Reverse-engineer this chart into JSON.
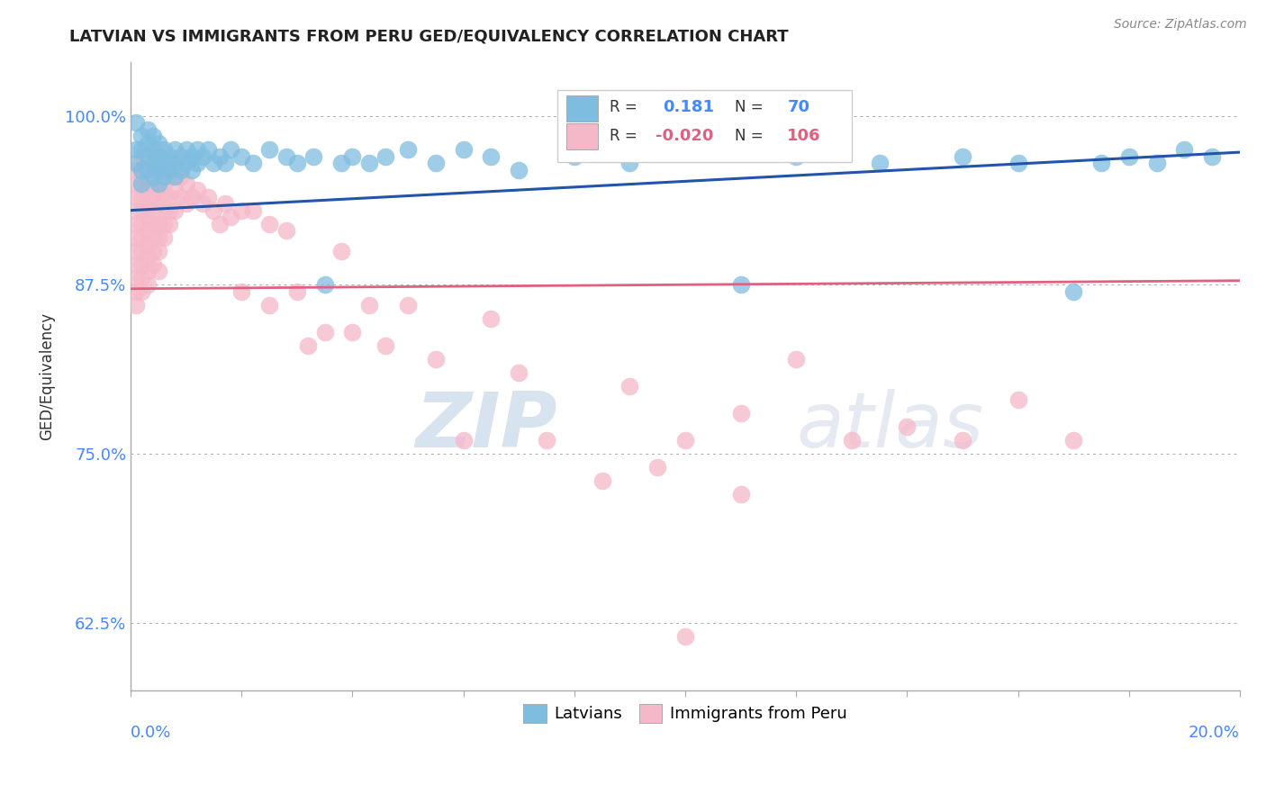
{
  "title": "LATVIAN VS IMMIGRANTS FROM PERU GED/EQUIVALENCY CORRELATION CHART",
  "source": "Source: ZipAtlas.com",
  "ylabel": "GED/Equivalency",
  "ytick_labels": [
    "62.5%",
    "75.0%",
    "87.5%",
    "100.0%"
  ],
  "ytick_values": [
    0.625,
    0.75,
    0.875,
    1.0
  ],
  "xlim": [
    0.0,
    0.2
  ],
  "ylim": [
    0.575,
    1.04
  ],
  "legend_latvians": "Latvians",
  "legend_peru": "Immigrants from Peru",
  "r_latvian": 0.181,
  "n_latvian": 70,
  "r_peru": -0.02,
  "n_peru": 106,
  "blue_color": "#7fbde0",
  "pink_color": "#f5b8c8",
  "blue_line_color": "#2255aa",
  "pink_line_color": "#e06080",
  "lv_line_y0": 0.93,
  "lv_line_y1": 0.973,
  "peru_line_y0": 0.872,
  "peru_line_y1": 0.878,
  "latvian_scatter": [
    [
      0.001,
      0.975
    ],
    [
      0.001,
      0.965
    ],
    [
      0.001,
      0.995
    ],
    [
      0.002,
      0.985
    ],
    [
      0.002,
      0.975
    ],
    [
      0.002,
      0.96
    ],
    [
      0.002,
      0.95
    ],
    [
      0.003,
      0.99
    ],
    [
      0.003,
      0.98
    ],
    [
      0.003,
      0.97
    ],
    [
      0.003,
      0.96
    ],
    [
      0.004,
      0.985
    ],
    [
      0.004,
      0.975
    ],
    [
      0.004,
      0.965
    ],
    [
      0.004,
      0.955
    ],
    [
      0.005,
      0.98
    ],
    [
      0.005,
      0.97
    ],
    [
      0.005,
      0.96
    ],
    [
      0.005,
      0.95
    ],
    [
      0.006,
      0.975
    ],
    [
      0.006,
      0.965
    ],
    [
      0.006,
      0.955
    ],
    [
      0.007,
      0.97
    ],
    [
      0.007,
      0.96
    ],
    [
      0.008,
      0.975
    ],
    [
      0.008,
      0.965
    ],
    [
      0.008,
      0.955
    ],
    [
      0.009,
      0.97
    ],
    [
      0.009,
      0.96
    ],
    [
      0.01,
      0.975
    ],
    [
      0.01,
      0.965
    ],
    [
      0.011,
      0.97
    ],
    [
      0.011,
      0.96
    ],
    [
      0.012,
      0.975
    ],
    [
      0.012,
      0.965
    ],
    [
      0.013,
      0.97
    ],
    [
      0.014,
      0.975
    ],
    [
      0.015,
      0.965
    ],
    [
      0.016,
      0.97
    ],
    [
      0.017,
      0.965
    ],
    [
      0.018,
      0.975
    ],
    [
      0.02,
      0.97
    ],
    [
      0.022,
      0.965
    ],
    [
      0.025,
      0.975
    ],
    [
      0.028,
      0.97
    ],
    [
      0.03,
      0.965
    ],
    [
      0.033,
      0.97
    ],
    [
      0.035,
      0.875
    ],
    [
      0.038,
      0.965
    ],
    [
      0.04,
      0.97
    ],
    [
      0.043,
      0.965
    ],
    [
      0.046,
      0.97
    ],
    [
      0.05,
      0.975
    ],
    [
      0.055,
      0.965
    ],
    [
      0.06,
      0.975
    ],
    [
      0.065,
      0.97
    ],
    [
      0.07,
      0.96
    ],
    [
      0.08,
      0.97
    ],
    [
      0.09,
      0.965
    ],
    [
      0.11,
      0.875
    ],
    [
      0.12,
      0.97
    ],
    [
      0.135,
      0.965
    ],
    [
      0.15,
      0.97
    ],
    [
      0.16,
      0.965
    ],
    [
      0.17,
      0.87
    ],
    [
      0.175,
      0.965
    ],
    [
      0.18,
      0.97
    ],
    [
      0.185,
      0.965
    ],
    [
      0.19,
      0.975
    ],
    [
      0.195,
      0.97
    ]
  ],
  "peru_scatter": [
    [
      0.001,
      0.96
    ],
    [
      0.001,
      0.95
    ],
    [
      0.001,
      0.94
    ],
    [
      0.001,
      0.93
    ],
    [
      0.001,
      0.92
    ],
    [
      0.001,
      0.91
    ],
    [
      0.001,
      0.9
    ],
    [
      0.001,
      0.89
    ],
    [
      0.001,
      0.88
    ],
    [
      0.001,
      0.87
    ],
    [
      0.001,
      0.86
    ],
    [
      0.002,
      0.97
    ],
    [
      0.002,
      0.96
    ],
    [
      0.002,
      0.95
    ],
    [
      0.002,
      0.94
    ],
    [
      0.002,
      0.93
    ],
    [
      0.002,
      0.92
    ],
    [
      0.002,
      0.91
    ],
    [
      0.002,
      0.9
    ],
    [
      0.002,
      0.89
    ],
    [
      0.002,
      0.88
    ],
    [
      0.002,
      0.87
    ],
    [
      0.003,
      0.965
    ],
    [
      0.003,
      0.955
    ],
    [
      0.003,
      0.945
    ],
    [
      0.003,
      0.935
    ],
    [
      0.003,
      0.925
    ],
    [
      0.003,
      0.915
    ],
    [
      0.003,
      0.905
    ],
    [
      0.003,
      0.895
    ],
    [
      0.003,
      0.885
    ],
    [
      0.003,
      0.875
    ],
    [
      0.004,
      0.96
    ],
    [
      0.004,
      0.95
    ],
    [
      0.004,
      0.94
    ],
    [
      0.004,
      0.93
    ],
    [
      0.004,
      0.92
    ],
    [
      0.004,
      0.91
    ],
    [
      0.004,
      0.9
    ],
    [
      0.004,
      0.89
    ],
    [
      0.005,
      0.97
    ],
    [
      0.005,
      0.955
    ],
    [
      0.005,
      0.945
    ],
    [
      0.005,
      0.935
    ],
    [
      0.005,
      0.92
    ],
    [
      0.005,
      0.91
    ],
    [
      0.005,
      0.9
    ],
    [
      0.005,
      0.885
    ],
    [
      0.006,
      0.96
    ],
    [
      0.006,
      0.95
    ],
    [
      0.006,
      0.94
    ],
    [
      0.006,
      0.93
    ],
    [
      0.006,
      0.92
    ],
    [
      0.006,
      0.91
    ],
    [
      0.007,
      0.965
    ],
    [
      0.007,
      0.955
    ],
    [
      0.007,
      0.94
    ],
    [
      0.007,
      0.93
    ],
    [
      0.007,
      0.92
    ],
    [
      0.008,
      0.96
    ],
    [
      0.008,
      0.945
    ],
    [
      0.008,
      0.93
    ],
    [
      0.009,
      0.955
    ],
    [
      0.009,
      0.94
    ],
    [
      0.01,
      0.95
    ],
    [
      0.01,
      0.935
    ],
    [
      0.011,
      0.94
    ],
    [
      0.012,
      0.945
    ],
    [
      0.013,
      0.935
    ],
    [
      0.014,
      0.94
    ],
    [
      0.015,
      0.93
    ],
    [
      0.016,
      0.92
    ],
    [
      0.017,
      0.935
    ],
    [
      0.018,
      0.925
    ],
    [
      0.02,
      0.87
    ],
    [
      0.02,
      0.93
    ],
    [
      0.022,
      0.93
    ],
    [
      0.025,
      0.86
    ],
    [
      0.025,
      0.92
    ],
    [
      0.028,
      0.915
    ],
    [
      0.03,
      0.87
    ],
    [
      0.032,
      0.83
    ],
    [
      0.035,
      0.84
    ],
    [
      0.038,
      0.9
    ],
    [
      0.04,
      0.84
    ],
    [
      0.043,
      0.86
    ],
    [
      0.046,
      0.83
    ],
    [
      0.05,
      0.86
    ],
    [
      0.055,
      0.82
    ],
    [
      0.06,
      0.76
    ],
    [
      0.065,
      0.85
    ],
    [
      0.07,
      0.81
    ],
    [
      0.075,
      0.76
    ],
    [
      0.085,
      0.73
    ],
    [
      0.09,
      0.8
    ],
    [
      0.095,
      0.74
    ],
    [
      0.1,
      0.76
    ],
    [
      0.11,
      0.72
    ],
    [
      0.12,
      0.82
    ],
    [
      0.13,
      0.76
    ],
    [
      0.14,
      0.77
    ],
    [
      0.15,
      0.76
    ],
    [
      0.16,
      0.79
    ],
    [
      0.17,
      0.76
    ],
    [
      0.1,
      0.615
    ],
    [
      0.11,
      0.78
    ]
  ],
  "watermark_zip": "ZIP",
  "watermark_atlas": "atlas"
}
